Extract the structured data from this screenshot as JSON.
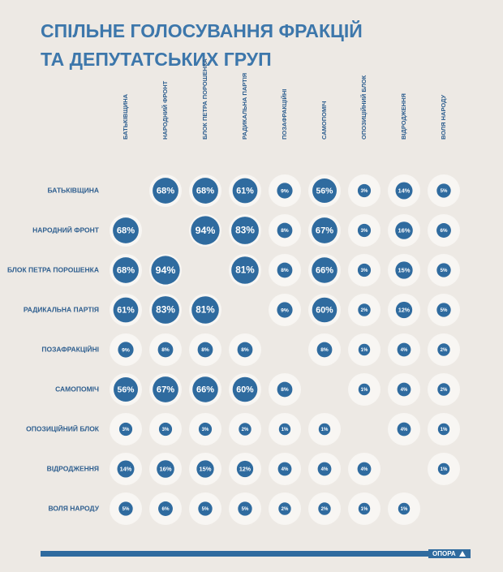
{
  "chart_data": {
    "type": "bubble-matrix",
    "title": [
      "СПІЛЬНЕ ГОЛОСУВАННЯ ФРАКЦІЙ",
      "ТА ДЕПУТАТСЬКИХ ГРУП"
    ],
    "categories": [
      "БАТЬКІВЩИНА",
      "НАРОДНИЙ ФРОНТ",
      "БЛОК ПЕТРА ПОРОШЕНКА",
      "РАДИКАЛЬНА ПАРТІЯ",
      "ПОЗАФРАКЦІЙНІ",
      "САМОПОМІЧ",
      "ОПОЗИЦІЙНИЙ БЛОК",
      "ВІДРОДЖЕННЯ",
      "ВОЛЯ НАРОДУ"
    ],
    "values": [
      [
        null,
        68,
        68,
        61,
        9,
        56,
        3,
        14,
        5
      ],
      [
        68,
        null,
        94,
        83,
        8,
        67,
        3,
        16,
        6
      ],
      [
        68,
        94,
        null,
        81,
        8,
        66,
        3,
        15,
        5
      ],
      [
        61,
        83,
        81,
        null,
        9,
        60,
        2,
        12,
        5
      ],
      [
        9,
        8,
        8,
        8,
        null,
        8,
        1,
        4,
        2
      ],
      [
        56,
        67,
        66,
        60,
        8,
        null,
        1,
        4,
        2
      ],
      [
        3,
        3,
        3,
        2,
        1,
        1,
        null,
        4,
        1
      ],
      [
        14,
        16,
        15,
        12,
        4,
        4,
        4,
        null,
        1
      ],
      [
        5,
        6,
        5,
        5,
        2,
        2,
        1,
        1,
        null
      ]
    ],
    "value_labels": [
      [
        null,
        "68%",
        "68%",
        "61%",
        "9%",
        "56%",
        "3%",
        "14%",
        "5%"
      ],
      [
        "68%",
        null,
        "94%",
        "83%",
        "8%",
        "67%",
        "3%",
        "16%",
        "6%"
      ],
      [
        "68%",
        "94%",
        null,
        "81%",
        "8%",
        "66%",
        "3%",
        "15%",
        "5%"
      ],
      [
        "61%",
        "83%",
        "81%",
        null,
        "9%",
        "60%",
        "2%",
        "12%",
        "5%"
      ],
      [
        "9%",
        "8%",
        "8%",
        "8%",
        null,
        "8%",
        "1%",
        "4%",
        "2%"
      ],
      [
        "56%",
        "67%",
        "66%",
        "60%",
        "8%",
        null,
        "1%",
        "4%",
        "2%"
      ],
      [
        "3%",
        "3%",
        "3%",
        "2%",
        "1%",
        "1%",
        null,
        "4%",
        "1%"
      ],
      [
        "14%",
        "16%",
        "15%",
        "12%",
        "4%",
        "4%",
        "4%",
        null,
        "1%"
      ],
      [
        "5%",
        "6%",
        "5%",
        "5%",
        "2%",
        "2%",
        "1%",
        "1%",
        null
      ]
    ],
    "color": "#2f6b9f"
  },
  "footer": {
    "brand": "ОПОРА"
  }
}
